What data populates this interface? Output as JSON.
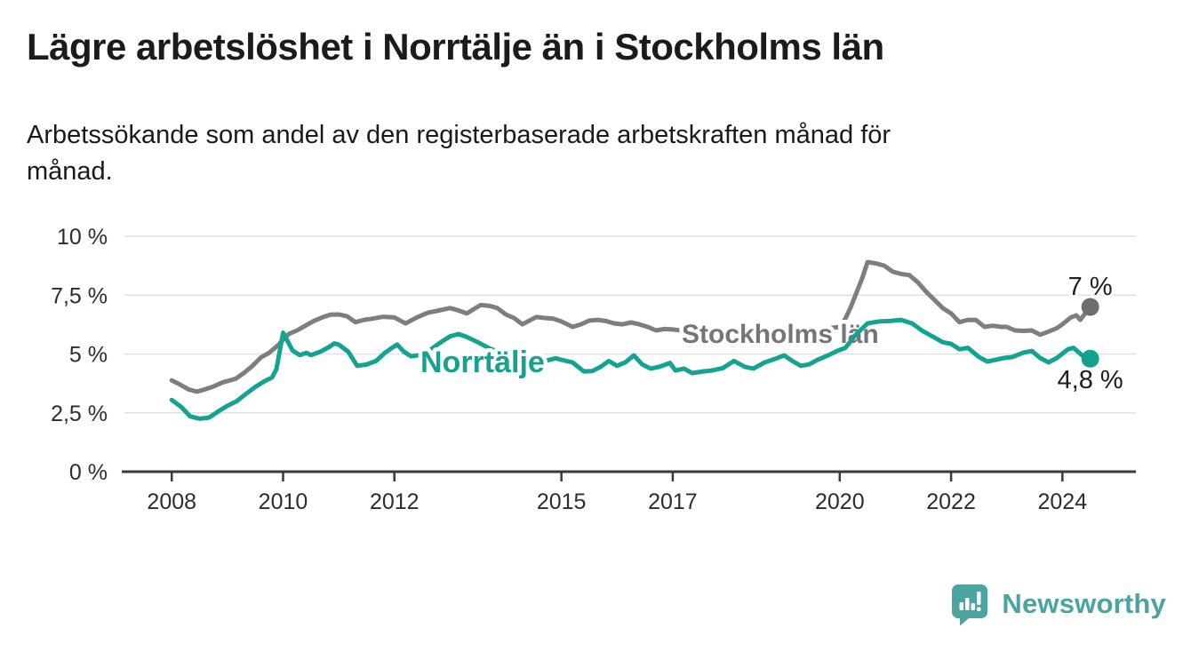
{
  "header": {
    "title": "Lägre arbetslöshet i Norrtälje än i Stockholms län",
    "subtitle": "Arbetssökande som andel av den registerbaserade arbetskraften månad för månad."
  },
  "chart_data": {
    "type": "line",
    "title": "Lägre arbetslöshet i Norrtälje än i Stockholms län",
    "subtitle": "Arbetssökande som andel av den registerbaserade arbetskraften månad för månad.",
    "unit": "%",
    "grid": true,
    "x_axis": {
      "range": [
        2007.15,
        2025.32
      ],
      "ticks": [
        {
          "value": 2008,
          "label": "2008"
        },
        {
          "value": 2010,
          "label": "2010"
        },
        {
          "value": 2012,
          "label": "2012"
        },
        {
          "value": 2015,
          "label": "2015"
        },
        {
          "value": 2017,
          "label": "2017"
        },
        {
          "value": 2020,
          "label": "2020"
        },
        {
          "value": 2022,
          "label": "2022"
        },
        {
          "value": 2024,
          "label": "2024"
        }
      ]
    },
    "y_axis": {
      "range": [
        0,
        10
      ],
      "ticks": [
        {
          "value": 0,
          "label": "0 %"
        },
        {
          "value": 2.5,
          "label": "2,5 %"
        },
        {
          "value": 5,
          "label": "5 %"
        },
        {
          "value": 7.5,
          "label": "7,5 %"
        },
        {
          "value": 10,
          "label": "10 %"
        }
      ]
    },
    "series": [
      {
        "name": "Stockholms län",
        "color": "#7e7e7e",
        "label_color": "#757575",
        "dot_color": "#6e6e6e",
        "end_label": "7 %",
        "points": [
          [
            2008,
            3.88
          ],
          [
            2008.15,
            3.7
          ],
          [
            2008.3,
            3.5
          ],
          [
            2008.45,
            3.4
          ],
          [
            2008.6,
            3.5
          ],
          [
            2008.75,
            3.62
          ],
          [
            2008.9,
            3.78
          ],
          [
            2009,
            3.85
          ],
          [
            2009.15,
            3.95
          ],
          [
            2009.3,
            4.2
          ],
          [
            2009.45,
            4.5
          ],
          [
            2009.6,
            4.85
          ],
          [
            2009.75,
            5.05
          ],
          [
            2009.9,
            5.35
          ],
          [
            2010,
            5.6
          ],
          [
            2010.1,
            5.85
          ],
          [
            2010.25,
            6.0
          ],
          [
            2010.4,
            6.2
          ],
          [
            2010.55,
            6.4
          ],
          [
            2010.7,
            6.55
          ],
          [
            2010.85,
            6.67
          ],
          [
            2011,
            6.68
          ],
          [
            2011.15,
            6.6
          ],
          [
            2011.3,
            6.35
          ],
          [
            2011.45,
            6.45
          ],
          [
            2011.6,
            6.5
          ],
          [
            2011.8,
            6.58
          ],
          [
            2012,
            6.55
          ],
          [
            2012.2,
            6.3
          ],
          [
            2012.4,
            6.55
          ],
          [
            2012.6,
            6.75
          ],
          [
            2012.8,
            6.85
          ],
          [
            2013,
            6.95
          ],
          [
            2013.15,
            6.85
          ],
          [
            2013.3,
            6.72
          ],
          [
            2013.42,
            6.9
          ],
          [
            2013.55,
            7.08
          ],
          [
            2013.7,
            7.05
          ],
          [
            2013.85,
            6.95
          ],
          [
            2014,
            6.68
          ],
          [
            2014.15,
            6.53
          ],
          [
            2014.3,
            6.26
          ],
          [
            2014.45,
            6.45
          ],
          [
            2014.55,
            6.57
          ],
          [
            2014.7,
            6.53
          ],
          [
            2014.85,
            6.5
          ],
          [
            2015,
            6.38
          ],
          [
            2015.2,
            6.15
          ],
          [
            2015.35,
            6.26
          ],
          [
            2015.5,
            6.42
          ],
          [
            2015.65,
            6.45
          ],
          [
            2015.8,
            6.4
          ],
          [
            2015.95,
            6.3
          ],
          [
            2016.1,
            6.26
          ],
          [
            2016.25,
            6.34
          ],
          [
            2016.4,
            6.26
          ],
          [
            2016.55,
            6.15
          ],
          [
            2016.7,
            6.0
          ],
          [
            2016.85,
            6.06
          ],
          [
            2017,
            6.04
          ],
          [
            2017.15,
            6.0
          ],
          [
            2017.4,
            5.95
          ],
          [
            2017.7,
            5.9
          ],
          [
            2018,
            5.95
          ],
          [
            2018.3,
            5.9
          ],
          [
            2018.6,
            5.85
          ],
          [
            2018.9,
            5.9
          ],
          [
            2019.2,
            5.95
          ],
          [
            2019.5,
            6.0
          ],
          [
            2019.75,
            6.08
          ],
          [
            2020,
            6.15
          ],
          [
            2020.1,
            6.5
          ],
          [
            2020.2,
            7.0
          ],
          [
            2020.3,
            7.6
          ],
          [
            2020.4,
            8.2
          ],
          [
            2020.5,
            8.9
          ],
          [
            2020.65,
            8.85
          ],
          [
            2020.8,
            8.75
          ],
          [
            2020.95,
            8.5
          ],
          [
            2021.1,
            8.4
          ],
          [
            2021.25,
            8.35
          ],
          [
            2021.4,
            8.05
          ],
          [
            2021.55,
            7.65
          ],
          [
            2021.7,
            7.3
          ],
          [
            2021.85,
            6.95
          ],
          [
            2022,
            6.72
          ],
          [
            2022.15,
            6.35
          ],
          [
            2022.3,
            6.45
          ],
          [
            2022.45,
            6.44
          ],
          [
            2022.6,
            6.15
          ],
          [
            2022.75,
            6.2
          ],
          [
            2022.9,
            6.15
          ],
          [
            2023,
            6.15
          ],
          [
            2023.15,
            6.0
          ],
          [
            2023.3,
            5.98
          ],
          [
            2023.45,
            6.0
          ],
          [
            2023.6,
            5.82
          ],
          [
            2023.75,
            5.95
          ],
          [
            2023.9,
            6.1
          ],
          [
            2024,
            6.26
          ],
          [
            2024.15,
            6.55
          ],
          [
            2024.25,
            6.64
          ],
          [
            2024.32,
            6.45
          ],
          [
            2024.5,
            7.0
          ]
        ]
      },
      {
        "name": "Norrtälje",
        "color": "#14a390",
        "label_color": "#14a390",
        "dot_color": "#12a18e",
        "end_label": "4,8 %",
        "points": [
          [
            2008,
            3.05
          ],
          [
            2008.17,
            2.75
          ],
          [
            2008.33,
            2.35
          ],
          [
            2008.5,
            2.25
          ],
          [
            2008.67,
            2.3
          ],
          [
            2008.83,
            2.55
          ],
          [
            2009,
            2.8
          ],
          [
            2009.17,
            3.0
          ],
          [
            2009.33,
            3.3
          ],
          [
            2009.5,
            3.6
          ],
          [
            2009.67,
            3.85
          ],
          [
            2009.8,
            4.0
          ],
          [
            2009.88,
            4.35
          ],
          [
            2010,
            5.9
          ],
          [
            2010.08,
            5.55
          ],
          [
            2010.17,
            5.15
          ],
          [
            2010.3,
            4.95
          ],
          [
            2010.42,
            5.05
          ],
          [
            2010.5,
            4.95
          ],
          [
            2010.67,
            5.1
          ],
          [
            2010.83,
            5.3
          ],
          [
            2010.92,
            5.45
          ],
          [
            2011,
            5.4
          ],
          [
            2011.17,
            5.1
          ],
          [
            2011.33,
            4.5
          ],
          [
            2011.5,
            4.55
          ],
          [
            2011.67,
            4.7
          ],
          [
            2011.83,
            5.05
          ],
          [
            2011.95,
            5.25
          ],
          [
            2012.05,
            5.4
          ],
          [
            2012.17,
            5.1
          ],
          [
            2012.3,
            4.9
          ],
          [
            2012.45,
            4.95
          ],
          [
            2012.6,
            5.1
          ],
          [
            2012.8,
            5.45
          ],
          [
            2013,
            5.75
          ],
          [
            2013.15,
            5.85
          ],
          [
            2013.3,
            5.72
          ],
          [
            2013.5,
            5.5
          ],
          [
            2013.7,
            5.25
          ],
          [
            2013.9,
            5.05
          ],
          [
            2014.1,
            4.9
          ],
          [
            2014.3,
            4.8
          ],
          [
            2014.5,
            4.72
          ],
          [
            2014.7,
            4.7
          ],
          [
            2014.9,
            4.82
          ],
          [
            2015,
            4.75
          ],
          [
            2015.2,
            4.64
          ],
          [
            2015.4,
            4.26
          ],
          [
            2015.55,
            4.27
          ],
          [
            2015.7,
            4.45
          ],
          [
            2015.85,
            4.7
          ],
          [
            2016,
            4.5
          ],
          [
            2016.15,
            4.65
          ],
          [
            2016.3,
            4.94
          ],
          [
            2016.45,
            4.56
          ],
          [
            2016.6,
            4.38
          ],
          [
            2016.75,
            4.45
          ],
          [
            2016.95,
            4.62
          ],
          [
            2017.05,
            4.3
          ],
          [
            2017.2,
            4.38
          ],
          [
            2017.35,
            4.19
          ],
          [
            2017.55,
            4.26
          ],
          [
            2017.7,
            4.3
          ],
          [
            2017.9,
            4.4
          ],
          [
            2018.1,
            4.7
          ],
          [
            2018.3,
            4.45
          ],
          [
            2018.45,
            4.38
          ],
          [
            2018.65,
            4.64
          ],
          [
            2018.85,
            4.8
          ],
          [
            2019,
            4.94
          ],
          [
            2019.15,
            4.7
          ],
          [
            2019.3,
            4.5
          ],
          [
            2019.45,
            4.56
          ],
          [
            2019.6,
            4.75
          ],
          [
            2019.8,
            4.95
          ],
          [
            2019.95,
            5.13
          ],
          [
            2020.1,
            5.26
          ],
          [
            2020.3,
            5.85
          ],
          [
            2020.5,
            6.3
          ],
          [
            2020.7,
            6.38
          ],
          [
            2020.9,
            6.4
          ],
          [
            2021.1,
            6.45
          ],
          [
            2021.3,
            6.3
          ],
          [
            2021.5,
            5.96
          ],
          [
            2021.7,
            5.7
          ],
          [
            2021.85,
            5.5
          ],
          [
            2022,
            5.43
          ],
          [
            2022.15,
            5.2
          ],
          [
            2022.3,
            5.26
          ],
          [
            2022.5,
            4.87
          ],
          [
            2022.65,
            4.68
          ],
          [
            2022.8,
            4.75
          ],
          [
            2022.95,
            4.83
          ],
          [
            2023.1,
            4.87
          ],
          [
            2023.3,
            5.06
          ],
          [
            2023.45,
            5.13
          ],
          [
            2023.6,
            4.83
          ],
          [
            2023.75,
            4.64
          ],
          [
            2023.9,
            4.83
          ],
          [
            2024.1,
            5.2
          ],
          [
            2024.2,
            5.26
          ],
          [
            2024.35,
            4.95
          ],
          [
            2024.5,
            4.8
          ]
        ]
      }
    ],
    "colors": {
      "grid": "#e0e0e0",
      "axis": "#3a3a3a",
      "tick_label": "#2d2d2d",
      "end_label": "#1d1d1d"
    }
  },
  "footer": {
    "brand": "Newsworthy",
    "brand_color": "#4ba49f"
  }
}
